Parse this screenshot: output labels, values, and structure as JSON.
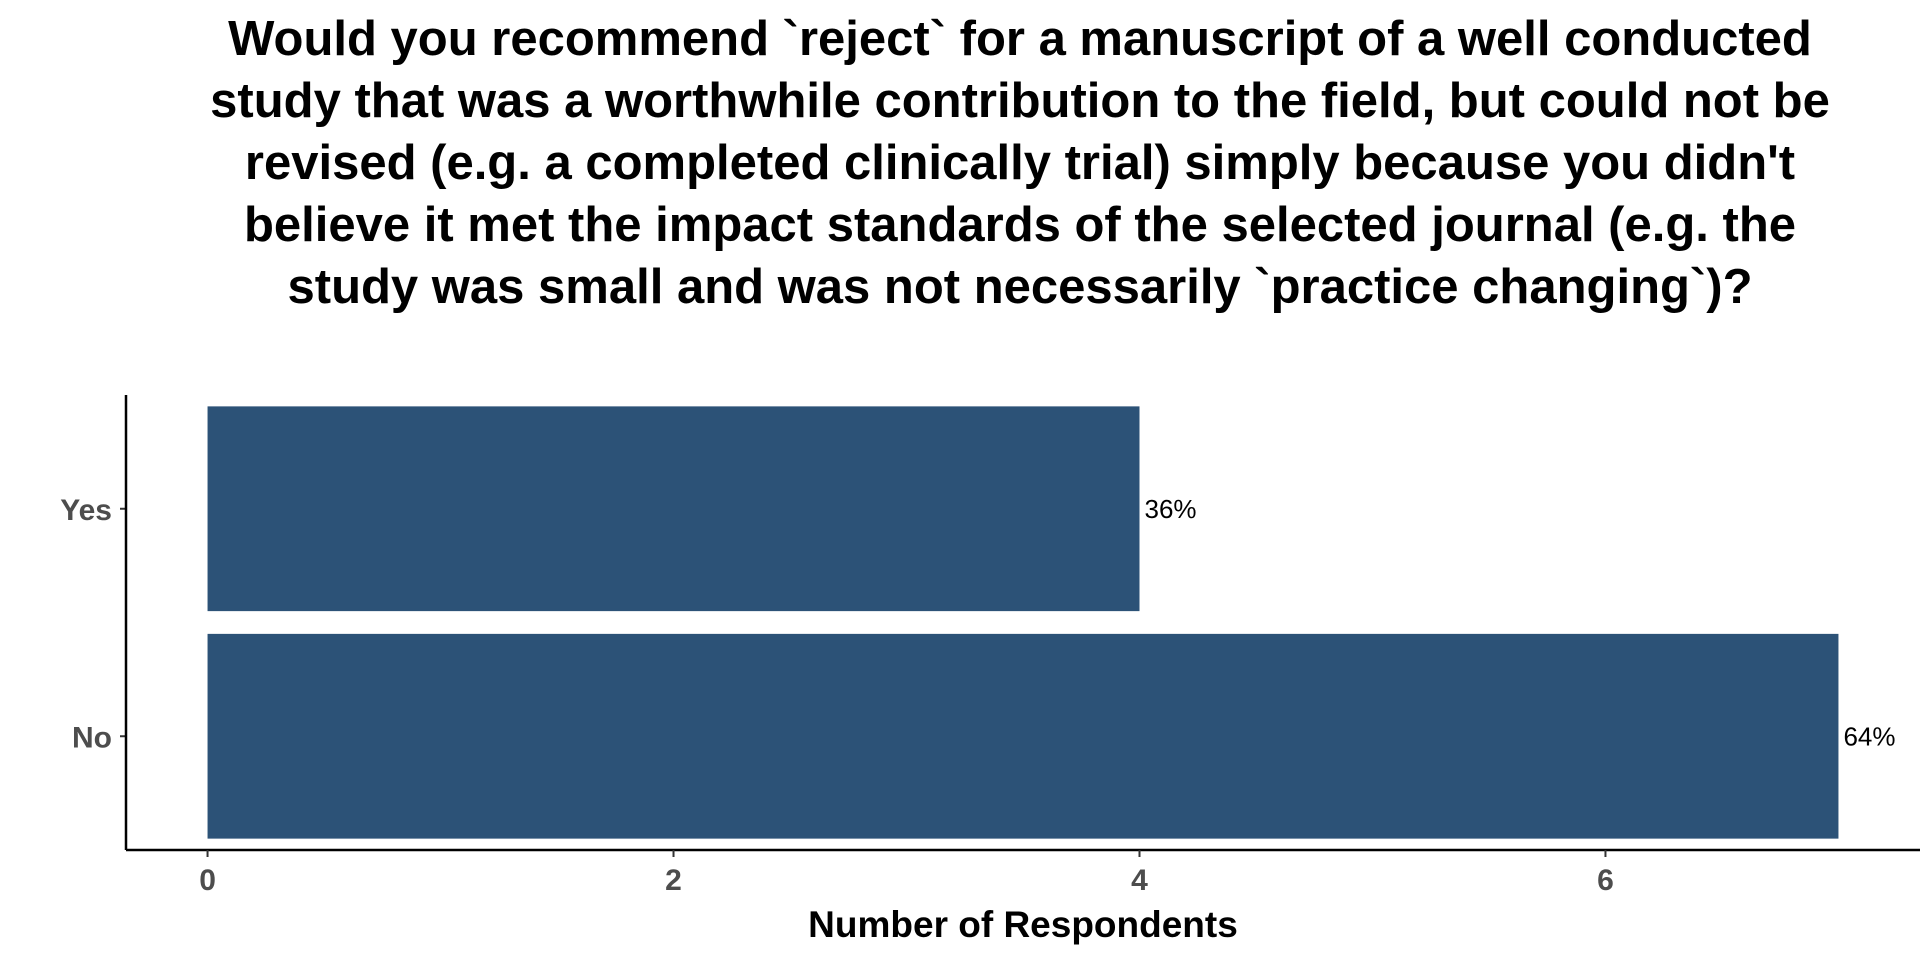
{
  "chart_data": {
    "type": "bar",
    "orientation": "horizontal",
    "title": "Would you recommend `reject` for a manuscript of a well conducted study that was a worthwhile contribution to the field, but could not be revised (e.g. a completed clinically trial) simply because you didn't believe it met the impact standards of the selected journal (e.g. the study was small and was not necessarily `practice changing`)?",
    "categories": [
      "Yes",
      "No"
    ],
    "values": [
      4,
      7
    ],
    "data_labels": [
      "36%",
      "64%"
    ],
    "xlabel": "Number of Respondents",
    "ylabel": "",
    "xticks": [
      0,
      2,
      4,
      6
    ],
    "xlim": [
      -0.35,
      7.35
    ],
    "bar_color": "#2c5277",
    "grid": false,
    "legend": "none"
  }
}
